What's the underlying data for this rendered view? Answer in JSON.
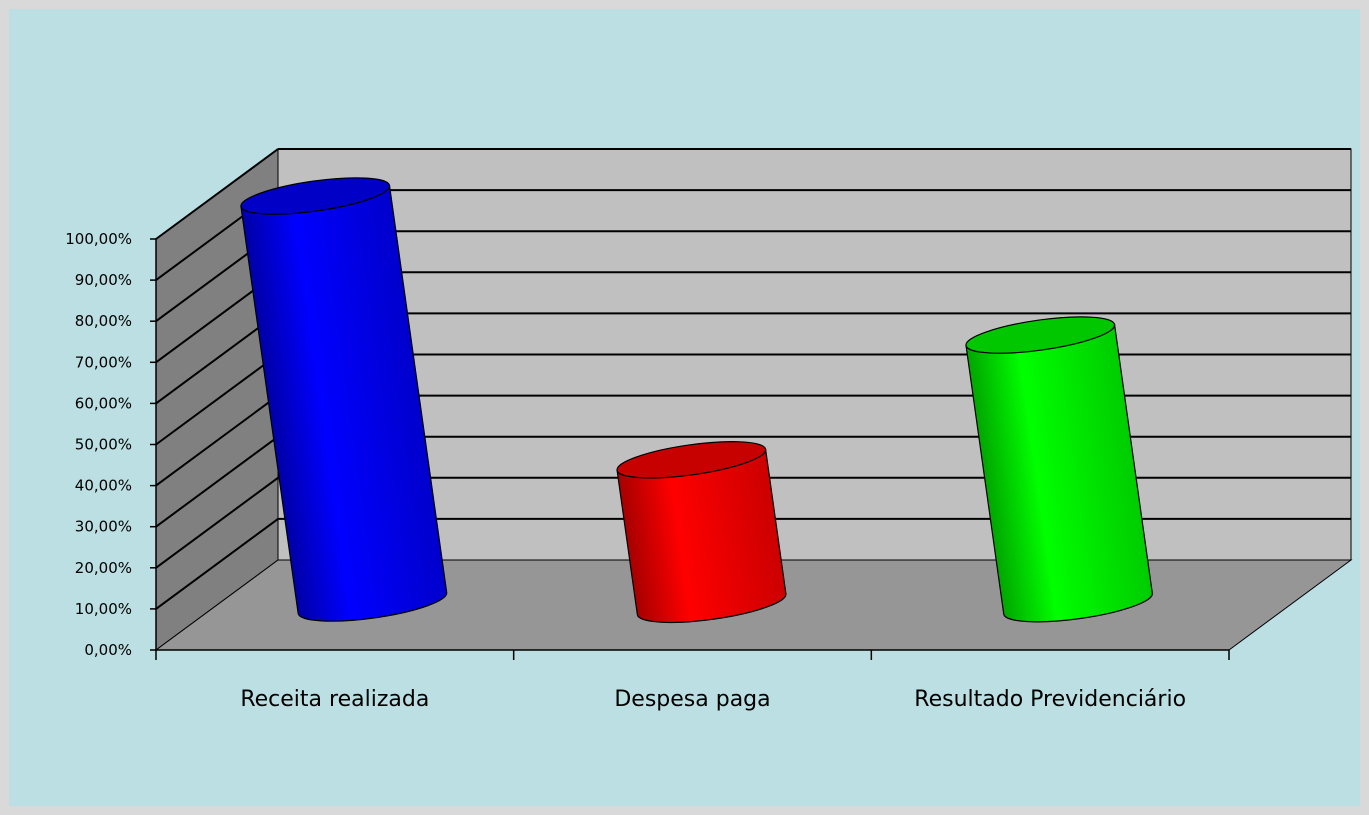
{
  "colors": {
    "background": "#bbdfe2",
    "back_wall": "#c0c0c0",
    "side_wall": "#808080",
    "floor": "#969696",
    "series_colors": [
      "#0000ff",
      "#ff0000",
      "#00ff00"
    ]
  },
  "chart_data": {
    "type": "bar",
    "style": "3d-cylinder",
    "categories": [
      "Receita realizada",
      "Despesa paga",
      "Resultado Previdenciário"
    ],
    "values": [
      100.0,
      35.5,
      66.0
    ],
    "title": "",
    "xlabel": "",
    "ylabel": "",
    "ylim": [
      0,
      100
    ],
    "y_ticks": [
      "0,00%",
      "10,00%",
      "20,00%",
      "30,00%",
      "40,00%",
      "50,00%",
      "60,00%",
      "70,00%",
      "80,00%",
      "90,00%",
      "100,00%"
    ],
    "grid": true,
    "legend": "none"
  }
}
